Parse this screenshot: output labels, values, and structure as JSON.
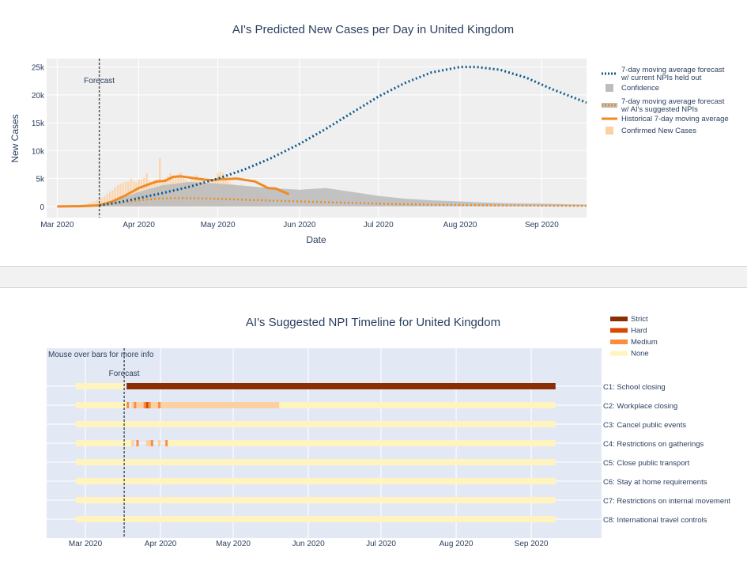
{
  "colors": {
    "forecast": "#0d5a8c",
    "confidence": "#bdbdbd",
    "suggested": "#f08a24",
    "historical": "#f08a24",
    "confirmed": "#fdd0a2",
    "strict": "#8c2d04",
    "hard": "#d94801",
    "medium": "#fd8d3c",
    "none": "#fff4c0",
    "plot_bg1": "#efefef",
    "plot_bg2": "#e3e9f4"
  },
  "chart_data": [
    {
      "type": "line",
      "title": "AI's Predicted New Cases per Day in United Kingdom",
      "xlabel": "Date",
      "ylabel": "New Cases",
      "xlim": [
        "2020-02-26",
        "2020-09-18"
      ],
      "ylim": [
        -2000,
        26500
      ],
      "x_ticks": [
        "2020-03-01",
        "2020-04-01",
        "2020-05-01",
        "2020-06-01",
        "2020-07-01",
        "2020-08-01",
        "2020-09-01"
      ],
      "x_tick_labels": [
        "Mar 2020",
        "Apr 2020",
        "May 2020",
        "Jun 2020",
        "Jul 2020",
        "Aug 2020",
        "Sep 2020"
      ],
      "y_ticks": [
        0,
        5000,
        10000,
        15000,
        20000,
        25000
      ],
      "y_tick_labels": [
        "0",
        "5k",
        "10k",
        "15k",
        "20k",
        "25k"
      ],
      "forecast_date": "2020-03-17",
      "forecast_label": "Forecast",
      "grid": true,
      "legend_position": "right",
      "legend": [
        {
          "name": "7-day moving average forecast",
          "name2": "w/ current NPIs held out",
          "marker": "dotted"
        },
        {
          "name": "Confidence",
          "name2": "",
          "marker": "square-gray"
        },
        {
          "name": "7-day moving average forecast",
          "name2": "w/ AI's suggested NPIs",
          "marker": "dotted-band"
        },
        {
          "name": "Historical 7-day moving average",
          "name2": "",
          "marker": "line"
        },
        {
          "name": "Confirmed New Cases",
          "name2": "",
          "marker": "square-light"
        }
      ],
      "series": [
        {
          "key": "forecast_current",
          "x": [
            "2020-03-17",
            "2020-03-24",
            "2020-04-01",
            "2020-04-10",
            "2020-04-20",
            "2020-05-01",
            "2020-05-11",
            "2020-05-21",
            "2020-06-01",
            "2020-06-11",
            "2020-06-21",
            "2020-07-01",
            "2020-07-11",
            "2020-07-21",
            "2020-08-01",
            "2020-08-07",
            "2020-08-16",
            "2020-08-26",
            "2020-09-05",
            "2020-09-18"
          ],
          "y": [
            200,
            700,
            1500,
            2400,
            3500,
            5000,
            6600,
            8600,
            11200,
            13900,
            16800,
            19700,
            22100,
            24000,
            25000,
            25000,
            24500,
            23100,
            21000,
            18600
          ]
        },
        {
          "key": "forecast_suggested",
          "x": [
            "2020-03-17",
            "2020-03-24",
            "2020-04-01",
            "2020-04-08",
            "2020-04-15",
            "2020-04-25",
            "2020-05-05",
            "2020-05-15",
            "2020-05-25",
            "2020-06-05",
            "2020-06-20",
            "2020-07-05",
            "2020-07-25",
            "2020-08-15",
            "2020-09-18"
          ],
          "y": [
            200,
            600,
            1100,
            1400,
            1500,
            1450,
            1300,
            1150,
            1000,
            850,
            650,
            450,
            300,
            200,
            100
          ]
        },
        {
          "key": "historical",
          "x": [
            "2020-03-01",
            "2020-03-10",
            "2020-03-17",
            "2020-03-22",
            "2020-03-27",
            "2020-04-01",
            "2020-04-05",
            "2020-04-08",
            "2020-04-11",
            "2020-04-14",
            "2020-04-17",
            "2020-04-20",
            "2020-04-23",
            "2020-04-26",
            "2020-04-29",
            "2020-05-02",
            "2020-05-05",
            "2020-05-08",
            "2020-05-12",
            "2020-05-15",
            "2020-05-18",
            "2020-05-20",
            "2020-05-23",
            "2020-05-26",
            "2020-05-28"
          ],
          "y": [
            0,
            50,
            200,
            900,
            2000,
            3300,
            4000,
            4500,
            4600,
            5300,
            5400,
            5200,
            5000,
            4800,
            4700,
            4900,
            4900,
            5000,
            4700,
            4500,
            3800,
            3300,
            3200,
            2600,
            2200
          ]
        },
        {
          "key": "confidence_upper",
          "x": [
            "2020-03-17",
            "2020-03-24",
            "2020-04-01",
            "2020-04-10",
            "2020-04-20",
            "2020-05-01",
            "2020-05-11",
            "2020-05-21",
            "2020-06-01",
            "2020-06-11",
            "2020-06-21",
            "2020-07-01",
            "2020-07-11",
            "2020-07-21",
            "2020-08-01",
            "2020-08-11",
            "2020-08-21",
            "2020-09-01",
            "2020-09-11",
            "2020-09-18"
          ],
          "y": [
            300,
            1200,
            2600,
            3800,
            4400,
            4100,
            3700,
            3300,
            3000,
            3300,
            2600,
            1900,
            1400,
            1100,
            900,
            700,
            550,
            500,
            400,
            350
          ]
        }
      ],
      "confirmed_new_cases": {
        "start": "2020-03-01",
        "values": [
          40,
          30,
          50,
          60,
          80,
          110,
          150,
          180,
          250,
          300,
          350,
          450,
          600,
          750,
          900,
          1100,
          1300,
          1600,
          1900,
          2300,
          2600,
          2900,
          3400,
          3800,
          4000,
          4200,
          4500,
          4400,
          5000,
          4600,
          4300,
          4800,
          4900,
          5100,
          5900,
          4600,
          3900,
          4700,
          4500,
          8700,
          4300,
          5000,
          5400,
          6000,
          5100,
          5500,
          5800,
          6100,
          5200,
          4800,
          4400,
          5000,
          5300,
          5600,
          4900,
          4700,
          4400,
          4200,
          4600,
          4800,
          5000,
          6000,
          6200,
          6000,
          4700,
          4400,
          4100,
          4000,
          3500,
          3400,
          3900,
          3600,
          3400,
          3200,
          2800,
          2500,
          2700,
          2400,
          2100,
          2000,
          1900
        ]
      }
    },
    {
      "type": "heatmap",
      "title": "AI's Suggested NPI Timeline for United Kingdom",
      "note": "Mouse over bars for more info",
      "xlim": [
        "2020-02-14",
        "2020-09-30"
      ],
      "x_ticks": [
        "2020-03-01",
        "2020-04-01",
        "2020-05-01",
        "2020-06-01",
        "2020-07-01",
        "2020-08-01",
        "2020-09-01"
      ],
      "x_tick_labels": [
        "Mar 2020",
        "Apr 2020",
        "May 2020",
        "Jun 2020",
        "Jul 2020",
        "Aug 2020",
        "Sep 2020"
      ],
      "forecast_date": "2020-03-17",
      "forecast_label": "Forecast",
      "legend": [
        {
          "name": "Strict",
          "level": "strict"
        },
        {
          "name": "Hard",
          "level": "hard"
        },
        {
          "name": "Medium",
          "level": "medium"
        },
        {
          "name": "None",
          "level": "none"
        }
      ],
      "rows": [
        {
          "label": "C1: School closing",
          "segments": [
            {
              "start": "2020-02-26",
              "end": "2020-03-17",
              "level": "none"
            },
            {
              "start": "2020-03-18",
              "end": "2020-09-11",
              "level": "strict"
            }
          ]
        },
        {
          "label": "C2: Workplace closing",
          "segments": [
            {
              "start": "2020-02-26",
              "end": "2020-03-18",
              "level": "none"
            },
            {
              "start": "2020-03-18",
              "end": "2020-03-19",
              "level": "medium"
            },
            {
              "start": "2020-03-20",
              "end": "2020-03-21",
              "level": "confirmed"
            },
            {
              "start": "2020-03-21",
              "end": "2020-03-22",
              "level": "medium"
            },
            {
              "start": "2020-03-22",
              "end": "2020-03-25",
              "level": "confirmed"
            },
            {
              "start": "2020-03-25",
              "end": "2020-03-26",
              "level": "medium"
            },
            {
              "start": "2020-03-26",
              "end": "2020-03-27",
              "level": "hard"
            },
            {
              "start": "2020-03-27",
              "end": "2020-03-28",
              "level": "medium"
            },
            {
              "start": "2020-03-28",
              "end": "2020-03-31",
              "level": "confirmed"
            },
            {
              "start": "2020-03-31",
              "end": "2020-04-01",
              "level": "medium"
            },
            {
              "start": "2020-04-01",
              "end": "2020-04-03",
              "level": "confirmed"
            },
            {
              "start": "2020-04-03",
              "end": "2020-05-20",
              "level": "confirmed"
            },
            {
              "start": "2020-05-20",
              "end": "2020-09-11",
              "level": "none"
            }
          ]
        },
        {
          "label": "C3: Cancel public events",
          "segments": [
            {
              "start": "2020-02-26",
              "end": "2020-09-11",
              "level": "none"
            }
          ]
        },
        {
          "label": "C4: Restrictions on gatherings",
          "segments": [
            {
              "start": "2020-02-26",
              "end": "2020-03-20",
              "level": "none"
            },
            {
              "start": "2020-03-20",
              "end": "2020-03-21",
              "level": "confirmed"
            },
            {
              "start": "2020-03-22",
              "end": "2020-03-23",
              "level": "medium"
            },
            {
              "start": "2020-03-26",
              "end": "2020-03-28",
              "level": "confirmed"
            },
            {
              "start": "2020-03-28",
              "end": "2020-03-29",
              "level": "medium"
            },
            {
              "start": "2020-03-31",
              "end": "2020-04-01",
              "level": "confirmed"
            },
            {
              "start": "2020-04-03",
              "end": "2020-04-04",
              "level": "medium"
            },
            {
              "start": "2020-04-04",
              "end": "2020-09-11",
              "level": "none"
            }
          ]
        },
        {
          "label": "C5: Close public transport",
          "segments": [
            {
              "start": "2020-02-26",
              "end": "2020-09-11",
              "level": "none"
            }
          ]
        },
        {
          "label": "C6: Stay at home requirements",
          "segments": [
            {
              "start": "2020-02-26",
              "end": "2020-09-11",
              "level": "none"
            }
          ]
        },
        {
          "label": "C7: Restrictions on internal movement",
          "segments": [
            {
              "start": "2020-02-26",
              "end": "2020-09-11",
              "level": "none"
            }
          ]
        },
        {
          "label": "C8: International travel controls",
          "segments": [
            {
              "start": "2020-02-26",
              "end": "2020-09-11",
              "level": "none"
            }
          ]
        }
      ]
    }
  ]
}
